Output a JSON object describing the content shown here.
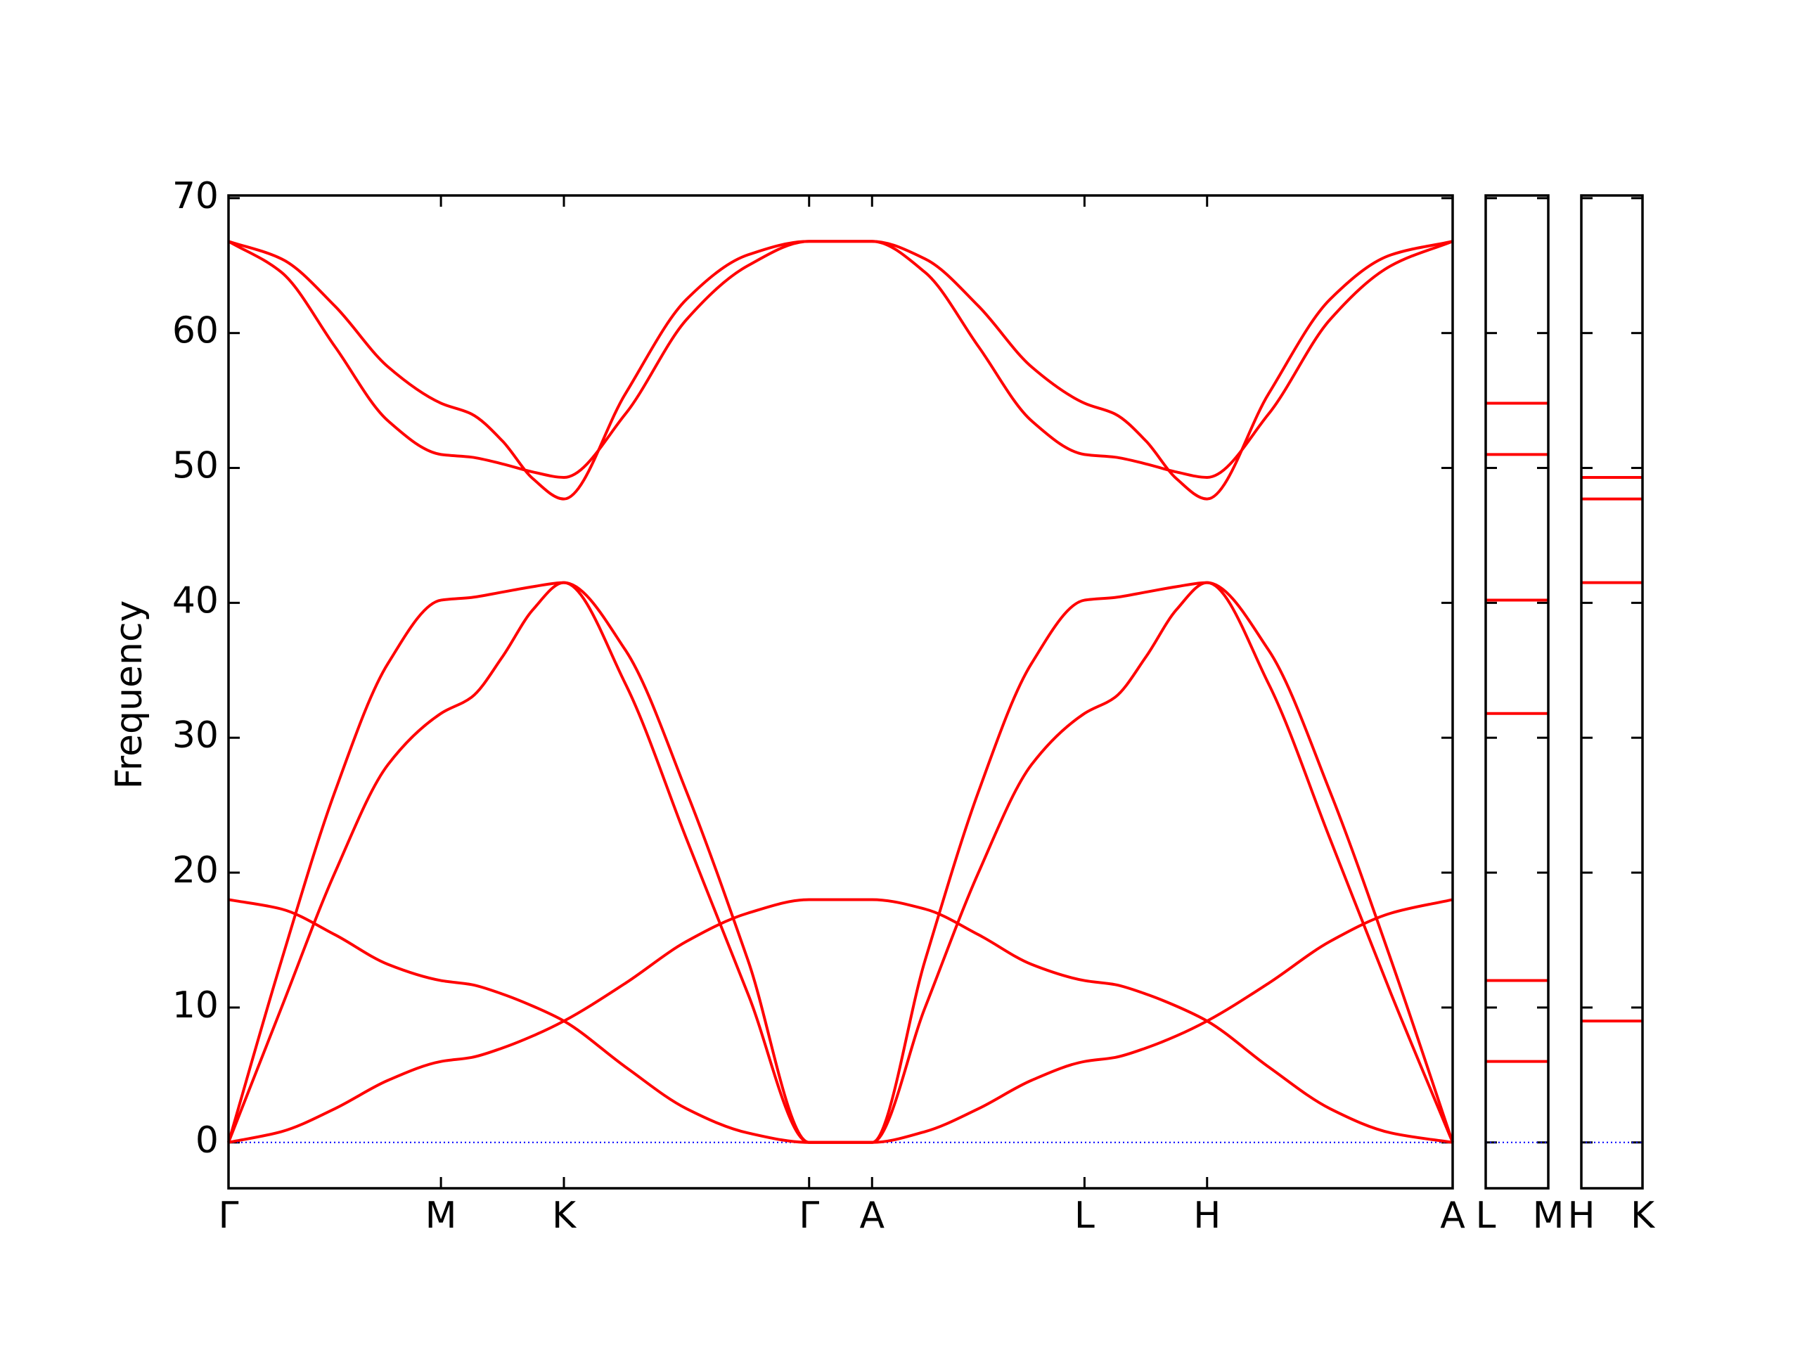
{
  "chart_data": [
    {
      "type": "line",
      "y_label": "Frequency",
      "x": [
        0,
        0.144,
        0.289,
        0.433,
        0.577,
        0.66,
        0.744,
        0.827,
        0.911,
        1.078,
        1.244,
        1.411,
        1.577,
        1.748,
        1.892,
        2.037,
        2.181,
        2.325,
        2.408,
        2.492,
        2.575,
        2.658,
        2.825,
        2.992,
        3.158,
        3.325
      ],
      "xlim": [
        0,
        3.325
      ],
      "xticks": [
        {
          "value": 0,
          "label": "Γ"
        },
        {
          "value": 0.577,
          "label": "M"
        },
        {
          "value": 0.911,
          "label": "K"
        },
        {
          "value": 1.577,
          "label": "Γ"
        },
        {
          "value": 1.748,
          "label": "A"
        },
        {
          "value": 2.325,
          "label": "L"
        },
        {
          "value": 2.658,
          "label": "H"
        },
        {
          "value": 3.325,
          "label": "A"
        }
      ],
      "ylim": [
        -3.4,
        70.2
      ],
      "yticks": [
        0,
        10,
        20,
        30,
        40,
        50,
        60,
        70
      ],
      "color": "#ff0000",
      "zero_line": {
        "value": 0,
        "color": "#0000ff"
      },
      "series": [
        {
          "values": [
            0,
            0.8,
            2.5,
            4.6,
            6.0,
            6.3,
            7.0,
            7.9,
            9.0,
            11.8,
            14.9,
            17.0,
            18.0,
            18.0,
            17.3,
            15.4,
            13.2,
            12.0,
            11.7,
            11.0,
            10.1,
            9.0,
            5.6,
            2.5,
            0.7,
            0
          ]
        },
        {
          "values": [
            18.0,
            17.3,
            15.4,
            13.2,
            12.0,
            11.7,
            11.0,
            10.1,
            9.0,
            5.6,
            2.5,
            0.7,
            0,
            0,
            0.8,
            2.5,
            4.6,
            6.0,
            6.3,
            7.0,
            7.9,
            9.0,
            11.8,
            14.9,
            17.0,
            18.0
          ]
        },
        {
          "values": [
            0,
            10,
            20,
            28,
            31.8,
            33,
            36,
            39.5,
            41.5,
            36.5,
            26,
            13.5,
            0,
            0,
            10,
            20,
            28,
            31.8,
            33,
            36,
            39.5,
            41.5,
            36.5,
            26,
            13.5,
            0
          ]
        },
        {
          "values": [
            0,
            13.5,
            26,
            35.5,
            40.2,
            40.4,
            40.8,
            41.2,
            41.5,
            34,
            22.5,
            11,
            0,
            0,
            13.5,
            26,
            35.5,
            40.2,
            40.4,
            40.8,
            41.2,
            41.5,
            34,
            22.5,
            11,
            0
          ]
        },
        {
          "values": [
            66.8,
            64.5,
            59,
            53.5,
            51.0,
            50.8,
            50.3,
            49.7,
            49.3,
            54,
            61,
            65,
            66.8,
            66.8,
            64.5,
            59,
            53.5,
            51.0,
            50.8,
            50.3,
            49.7,
            49.3,
            54,
            61,
            65,
            66.8
          ]
        },
        {
          "values": [
            66.8,
            65.5,
            62,
            57.5,
            54.8,
            54.0,
            52.0,
            49.2,
            47.7,
            55.5,
            62.5,
            65.8,
            66.8,
            66.8,
            65.5,
            62,
            57.5,
            54.8,
            54.0,
            52.0,
            49.2,
            47.7,
            55.5,
            62.5,
            65.8,
            66.8
          ]
        }
      ]
    },
    {
      "type": "line",
      "sharey": true,
      "x": [
        0,
        0.17
      ],
      "xlim": [
        0,
        0.17
      ],
      "xticks": [
        {
          "value": 0,
          "label": "L"
        },
        {
          "value": 0.17,
          "label": "M"
        }
      ],
      "ylim": [
        -3.4,
        70.2
      ],
      "color": "#ff0000",
      "zero_line": {
        "value": 0,
        "color": "#0000ff"
      },
      "series": [
        {
          "values": [
            54.8,
            54.8
          ]
        },
        {
          "values": [
            51.0,
            51.0
          ]
        },
        {
          "values": [
            40.2,
            40.2
          ]
        },
        {
          "values": [
            31.8,
            31.8
          ]
        },
        {
          "values": [
            12.0,
            12.0
          ]
        },
        {
          "values": [
            6.0,
            6.0
          ]
        }
      ]
    },
    {
      "type": "line",
      "sharey": true,
      "x": [
        0,
        0.17
      ],
      "xlim": [
        0,
        0.17
      ],
      "xticks": [
        {
          "value": 0,
          "label": "H"
        },
        {
          "value": 0.17,
          "label": "K"
        }
      ],
      "ylim": [
        -3.4,
        70.2
      ],
      "color": "#ff0000",
      "zero_line": {
        "value": 0,
        "color": "#0000ff"
      },
      "series": [
        {
          "values": [
            49.3,
            49.3
          ]
        },
        {
          "values": [
            47.7,
            47.7
          ]
        },
        {
          "values": [
            41.5,
            41.5
          ]
        },
        {
          "values": [
            9.0,
            9.0
          ]
        }
      ]
    }
  ]
}
